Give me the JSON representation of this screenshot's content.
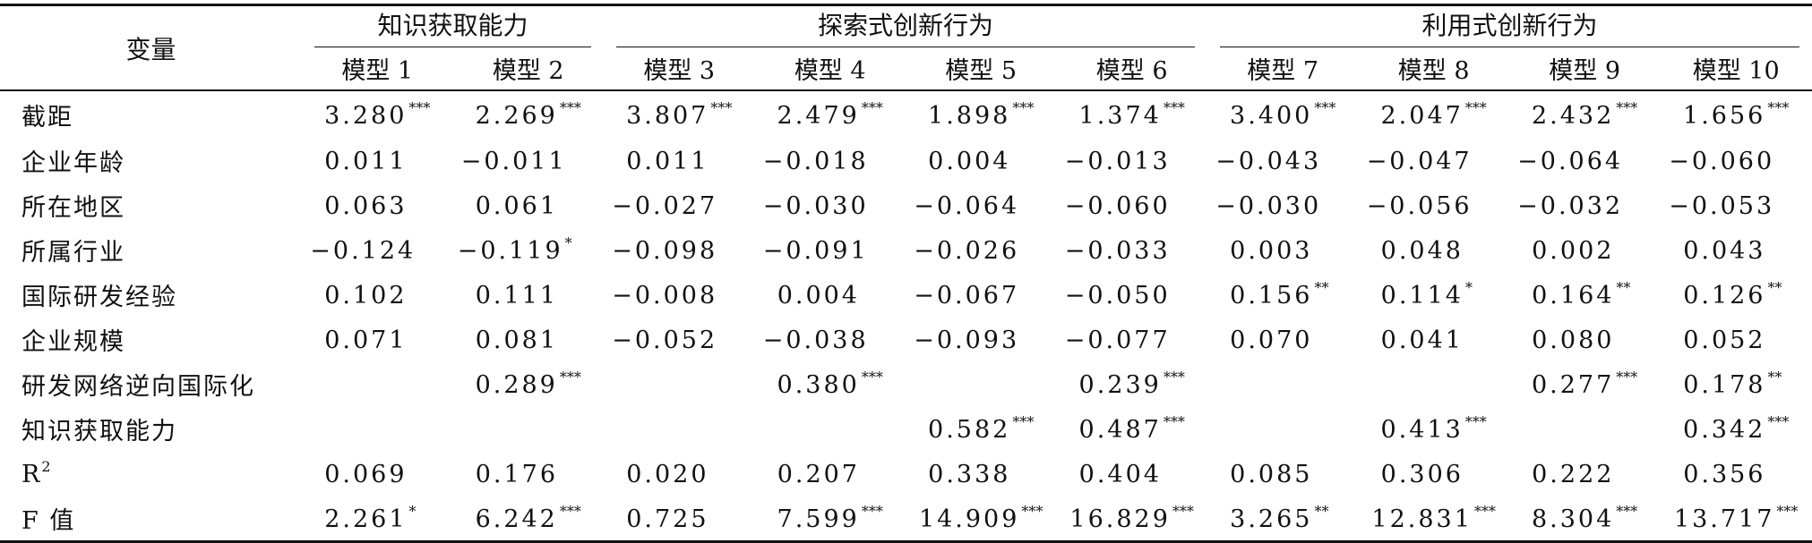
{
  "header": {
    "variable_label": "变量",
    "groups": [
      {
        "label": "知识获取能力",
        "span": 2
      },
      {
        "label": "探索式创新行为",
        "span": 4
      },
      {
        "label": "利用式创新行为",
        "span": 4
      }
    ],
    "models": [
      "模型 1",
      "模型 2",
      "模型 3",
      "模型 4",
      "模型 5",
      "模型 6",
      "模型 7",
      "模型 8",
      "模型 9",
      "模型 10"
    ]
  },
  "rows": [
    {
      "label": "截距",
      "cells": [
        [
          "3.280",
          "***"
        ],
        [
          "2.269",
          "***"
        ],
        [
          "3.807",
          "***"
        ],
        [
          "2.479",
          "***"
        ],
        [
          "1.898",
          "***"
        ],
        [
          "1.374",
          "***"
        ],
        [
          "3.400",
          "***"
        ],
        [
          "2.047",
          "***"
        ],
        [
          "2.432",
          "***"
        ],
        [
          "1.656",
          "***"
        ]
      ]
    },
    {
      "label": "企业年龄",
      "cells": [
        [
          "0.011",
          ""
        ],
        [
          "−0.011",
          ""
        ],
        [
          "0.011",
          ""
        ],
        [
          "−0.018",
          ""
        ],
        [
          "0.004",
          ""
        ],
        [
          "−0.013",
          ""
        ],
        [
          "−0.043",
          ""
        ],
        [
          "−0.047",
          ""
        ],
        [
          "−0.064",
          ""
        ],
        [
          "−0.060",
          ""
        ]
      ]
    },
    {
      "label": "所在地区",
      "cells": [
        [
          "0.063",
          ""
        ],
        [
          "0.061",
          ""
        ],
        [
          "−0.027",
          ""
        ],
        [
          "−0.030",
          ""
        ],
        [
          "−0.064",
          ""
        ],
        [
          "−0.060",
          ""
        ],
        [
          "−0.030",
          ""
        ],
        [
          "−0.056",
          ""
        ],
        [
          "−0.032",
          ""
        ],
        [
          "−0.053",
          ""
        ]
      ]
    },
    {
      "label": "所属行业",
      "cells": [
        [
          "−0.124",
          ""
        ],
        [
          "−0.119",
          "*"
        ],
        [
          "−0.098",
          ""
        ],
        [
          "−0.091",
          ""
        ],
        [
          "−0.026",
          ""
        ],
        [
          "−0.033",
          ""
        ],
        [
          "0.003",
          ""
        ],
        [
          "0.048",
          ""
        ],
        [
          "0.002",
          ""
        ],
        [
          "0.043",
          ""
        ]
      ]
    },
    {
      "label": "国际研发经验",
      "cells": [
        [
          "0.102",
          ""
        ],
        [
          "0.111",
          ""
        ],
        [
          "−0.008",
          ""
        ],
        [
          "0.004",
          ""
        ],
        [
          "−0.067",
          ""
        ],
        [
          "−0.050",
          ""
        ],
        [
          "0.156",
          "**"
        ],
        [
          "0.114",
          "*"
        ],
        [
          "0.164",
          "**"
        ],
        [
          "0.126",
          "**"
        ]
      ]
    },
    {
      "label": "企业规模",
      "cells": [
        [
          "0.071",
          ""
        ],
        [
          "0.081",
          ""
        ],
        [
          "−0.052",
          ""
        ],
        [
          "−0.038",
          ""
        ],
        [
          "−0.093",
          ""
        ],
        [
          "−0.077",
          ""
        ],
        [
          "0.070",
          ""
        ],
        [
          "0.041",
          ""
        ],
        [
          "0.080",
          ""
        ],
        [
          "0.052",
          ""
        ]
      ]
    },
    {
      "label": "研发网络逆向国际化",
      "cells": [
        [
          "",
          ""
        ],
        [
          "0.289",
          "***"
        ],
        [
          "",
          ""
        ],
        [
          "0.380",
          "***"
        ],
        [
          "",
          ""
        ],
        [
          "0.239",
          "***"
        ],
        [
          "",
          ""
        ],
        [
          "",
          ""
        ],
        [
          "0.277",
          "***"
        ],
        [
          "0.178",
          "**"
        ]
      ]
    },
    {
      "label": "知识获取能力",
      "cells": [
        [
          "",
          ""
        ],
        [
          "",
          ""
        ],
        [
          "",
          ""
        ],
        [
          "",
          ""
        ],
        [
          "0.582",
          "***"
        ],
        [
          "0.487",
          "***"
        ],
        [
          "",
          ""
        ],
        [
          "0.413",
          "***"
        ],
        [
          "",
          ""
        ],
        [
          "0.342",
          "***"
        ]
      ]
    },
    {
      "label": "R",
      "label_sup": "2",
      "cells": [
        [
          "0.069",
          ""
        ],
        [
          "0.176",
          ""
        ],
        [
          "0.020",
          ""
        ],
        [
          "0.207",
          ""
        ],
        [
          "0.338",
          ""
        ],
        [
          "0.404",
          ""
        ],
        [
          "0.085",
          ""
        ],
        [
          "0.306",
          ""
        ],
        [
          "0.222",
          ""
        ],
        [
          "0.356",
          ""
        ]
      ]
    },
    {
      "label": "F 值",
      "cells": [
        [
          "2.261",
          "*"
        ],
        [
          "6.242",
          "***"
        ],
        [
          "0.725",
          ""
        ],
        [
          "7.599",
          "***"
        ],
        [
          "14.909",
          "***"
        ],
        [
          "16.829",
          "***"
        ],
        [
          "3.265",
          "**"
        ],
        [
          "12.831",
          "***"
        ],
        [
          "8.304",
          "***"
        ],
        [
          "13.717",
          "***"
        ]
      ]
    }
  ]
}
